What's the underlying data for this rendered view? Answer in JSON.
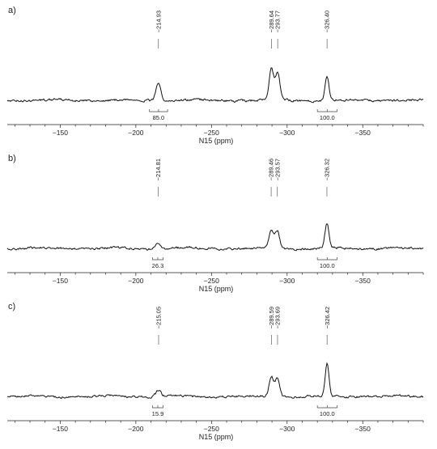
{
  "chart_data": [
    {
      "type": "line",
      "panel_label": "a)",
      "xlabel": "N15 (ppm)",
      "xlim": [
        -115,
        -390
      ],
      "x_ticks": [
        -150,
        -200,
        -250,
        -300,
        -350
      ],
      "x_tick_labels": [
        "−150",
        "−200",
        "−250",
        "−300",
        "−350"
      ],
      "peak_labels": [
        "−214.93",
        "−289.64",
        "−293.77",
        "−326.40"
      ],
      "peaks": [
        {
          "ppm": -214.93,
          "height": 0.45,
          "width": 1.6
        },
        {
          "ppm": -289.64,
          "height": 0.72,
          "width": 1.5
        },
        {
          "ppm": -293.77,
          "height": 0.62,
          "width": 1.5
        },
        {
          "ppm": -326.4,
          "height": 0.55,
          "width": 1.3
        }
      ],
      "integrals": [
        {
          "from": -209,
          "to": -221,
          "label": "85.0"
        },
        {
          "from": -320,
          "to": -333,
          "label": "100.0"
        }
      ]
    },
    {
      "type": "line",
      "panel_label": "b)",
      "xlabel": "N15 (ppm)",
      "xlim": [
        -115,
        -390
      ],
      "x_ticks": [
        -150,
        -200,
        -250,
        -300,
        -350
      ],
      "x_tick_labels": [
        "−150",
        "−200",
        "−250",
        "−300",
        "−350"
      ],
      "peak_labels": [
        "−214.81",
        "−289.46",
        "−293.57",
        "−326.32"
      ],
      "peaks": [
        {
          "ppm": -214.81,
          "height": 0.14,
          "width": 1.6
        },
        {
          "ppm": -289.46,
          "height": 0.4,
          "width": 1.5
        },
        {
          "ppm": -293.57,
          "height": 0.4,
          "width": 1.5
        },
        {
          "ppm": -326.32,
          "height": 0.58,
          "width": 1.3
        }
      ],
      "integrals": [
        {
          "from": -211,
          "to": -218,
          "label": "26.3"
        },
        {
          "from": -320,
          "to": -333,
          "label": "100.0"
        }
      ]
    },
    {
      "type": "line",
      "panel_label": "c)",
      "xlabel": "N15 (ppm)",
      "xlim": [
        -115,
        -390
      ],
      "x_ticks": [
        -150,
        -200,
        -250,
        -300,
        -350
      ],
      "x_tick_labels": [
        "−150",
        "−200",
        "−250",
        "−300",
        "−350"
      ],
      "peak_labels": [
        "−215.05",
        "−289.59",
        "−293.69",
        "−326.42"
      ],
      "peaks": [
        {
          "ppm": -215.05,
          "height": 0.14,
          "width": 1.6
        },
        {
          "ppm": -289.59,
          "height": 0.46,
          "width": 1.5
        },
        {
          "ppm": -293.69,
          "height": 0.46,
          "width": 1.5
        },
        {
          "ppm": -326.42,
          "height": 0.76,
          "width": 1.3
        }
      ],
      "integrals": [
        {
          "from": -211,
          "to": -218,
          "label": "15.9"
        },
        {
          "from": -320,
          "to": -333,
          "label": "100.0"
        }
      ]
    }
  ]
}
